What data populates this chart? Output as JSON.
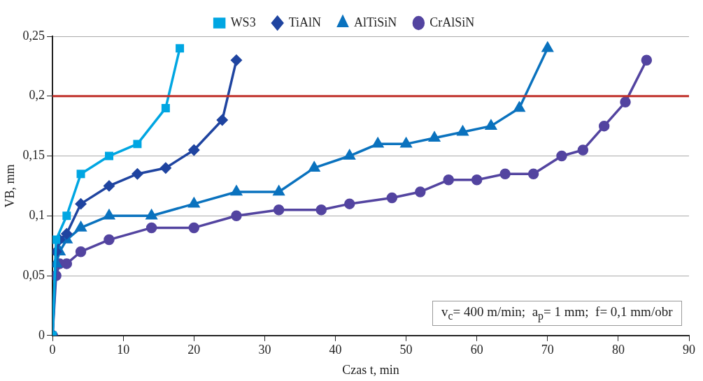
{
  "chart_data": {
    "type": "line",
    "xlabel": "Czas t, min",
    "ylabel": "VB, mm",
    "series": [
      {
        "name": "WS3",
        "color": "#00a6e2",
        "marker": "square",
        "x": [
          0,
          0.5,
          2,
          4,
          8,
          12,
          16,
          18
        ],
        "values": [
          0,
          0.08,
          0.1,
          0.135,
          0.15,
          0.16,
          0.19,
          0.24
        ]
      },
      {
        "name": "TiAlN",
        "color": "#1f44a0",
        "marker": "diamond",
        "x": [
          0,
          0.5,
          1,
          2,
          4,
          8,
          12,
          16,
          20,
          24,
          26
        ],
        "values": [
          0,
          0.07,
          0.08,
          0.085,
          0.11,
          0.125,
          0.135,
          0.14,
          0.155,
          0.18,
          0.23
        ]
      },
      {
        "name": "AlTiSiN",
        "color": "#0a72be",
        "marker": "triangle",
        "x": [
          0,
          0.5,
          1,
          2,
          4,
          8,
          14,
          20,
          26,
          32,
          37,
          42,
          46,
          50,
          54,
          58,
          62,
          66,
          70
        ],
        "values": [
          0,
          0.06,
          0.07,
          0.08,
          0.09,
          0.1,
          0.1,
          0.11,
          0.12,
          0.12,
          0.14,
          0.15,
          0.16,
          0.16,
          0.165,
          0.17,
          0.175,
          0.19,
          0.24
        ]
      },
      {
        "name": "CrAlSiN",
        "color": "#5344a0",
        "marker": "circle",
        "x": [
          0,
          0.5,
          1,
          2,
          4,
          8,
          14,
          20,
          26,
          32,
          38,
          42,
          48,
          52,
          56,
          60,
          64,
          68,
          72,
          75,
          78,
          81,
          84
        ],
        "values": [
          0,
          0.05,
          0.06,
          0.06,
          0.07,
          0.08,
          0.09,
          0.09,
          0.1,
          0.105,
          0.105,
          0.11,
          0.115,
          0.12,
          0.13,
          0.13,
          0.135,
          0.135,
          0.15,
          0.155,
          0.175,
          0.195,
          0.23
        ]
      }
    ],
    "xlim": [
      0,
      90
    ],
    "xticks": [
      0,
      10,
      20,
      30,
      40,
      50,
      60,
      70,
      80,
      90
    ],
    "ylim": [
      0,
      0.25
    ],
    "yticks": [
      0,
      {
        "value": 0.05,
        "label": "0,05"
      },
      {
        "value": 0.1,
        "label": "0,1"
      },
      {
        "value": 0.15,
        "label": "0,15"
      },
      {
        "value": 0.2,
        "label": "0,2"
      },
      {
        "value": 0.25,
        "label": "0,25"
      }
    ],
    "ref_lines": [
      {
        "axis": "y",
        "value": 0.2,
        "color": "#c0302a"
      }
    ],
    "annotations": [
      "v$_{c}$= 400 m/min;  a$_{p}$= 1 mm;  f= 0,1 mm/obr"
    ],
    "grid": "y",
    "legend": "top",
    "line_style": "solid"
  }
}
